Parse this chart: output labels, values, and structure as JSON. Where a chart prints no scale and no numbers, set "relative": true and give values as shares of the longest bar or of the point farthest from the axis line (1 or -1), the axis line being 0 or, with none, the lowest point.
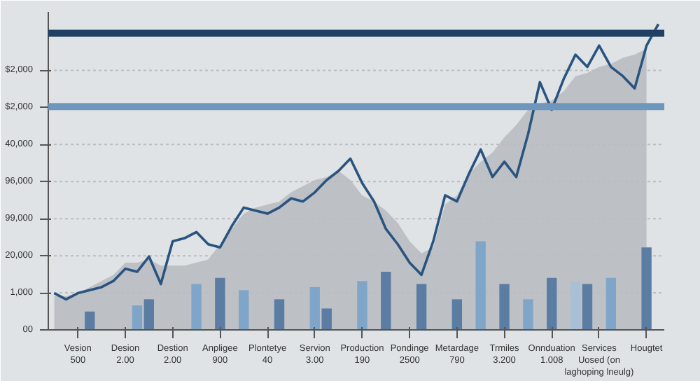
{
  "chart_data": {
    "type": "line",
    "relative": true,
    "categories": [
      null,
      null,
      "Vesion\n500",
      null,
      null,
      null,
      "Desion\n2.00",
      null,
      null,
      null,
      "Destion\n2.00",
      null,
      null,
      null,
      "Anpligee\n900",
      null,
      null,
      null,
      "Plontetye\n40",
      null,
      null,
      null,
      "Servion\n3.00",
      null,
      null,
      null,
      "Production\n190",
      null,
      null,
      null,
      "Pondinge\n2500",
      null,
      null,
      null,
      "Metardage\n790",
      null,
      null,
      null,
      "Trmiles\n3.200",
      null,
      null,
      null,
      "Onnduation\n1.008",
      null,
      null,
      null,
      "Services\nUosed (on\nlaghoping lneulg)",
      null,
      null,
      null,
      "Hougtet",
      null
    ],
    "annotations": [
      "00",
      "1,000",
      "20,000",
      "99,000",
      "96,000",
      "40,000",
      "$2,000",
      "$2,000"
    ],
    "series": [
      {
        "type": "area",
        "color": "#b9bdc1",
        "values": [
          0.11,
          0.11,
          0.12,
          0.14,
          0.16,
          0.18,
          0.22,
          0.22,
          0.23,
          0.21,
          0.21,
          0.21,
          0.22,
          0.23,
          0.28,
          0.33,
          0.38,
          0.4,
          0.41,
          0.42,
          0.45,
          0.47,
          0.49,
          0.5,
          0.52,
          0.49,
          0.44,
          0.42,
          0.39,
          0.35,
          0.29,
          0.25,
          0.27,
          0.41,
          0.44,
          0.51,
          0.55,
          0.58,
          0.63,
          0.67,
          0.72,
          0.74,
          0.75,
          0.78,
          0.83,
          0.84,
          0.86,
          0.87,
          0.89,
          0.9,
          0.92,
          null
        ]
      },
      {
        "type": "bar",
        "color": "#5b7ca3",
        "values": [
          null,
          null,
          null,
          0.06,
          null,
          null,
          null,
          null,
          0.1,
          null,
          null,
          null,
          null,
          null,
          0.17,
          null,
          null,
          null,
          null,
          0.1,
          null,
          null,
          null,
          0.07,
          null,
          null,
          null,
          null,
          0.19,
          null,
          null,
          0.15,
          null,
          null,
          0.1,
          null,
          null,
          null,
          0.15,
          null,
          null,
          null,
          0.17,
          null,
          null,
          0.15,
          null,
          null,
          null,
          null,
          0.27,
          null
        ]
      },
      {
        "type": "bar",
        "color": "#7fa6c9",
        "values": [
          null,
          null,
          null,
          null,
          null,
          null,
          null,
          0.08,
          null,
          null,
          null,
          null,
          0.15,
          null,
          null,
          null,
          0.13,
          null,
          null,
          null,
          null,
          null,
          0.14,
          null,
          null,
          null,
          0.16,
          null,
          null,
          null,
          null,
          null,
          null,
          null,
          null,
          null,
          0.29,
          null,
          null,
          null,
          0.1,
          null,
          null,
          null,
          null,
          null,
          null,
          0.17,
          null,
          null,
          null,
          null
        ]
      },
      {
        "type": "bar",
        "color": "#a8bfd5",
        "values": [
          null,
          null,
          null,
          null,
          null,
          null,
          null,
          null,
          null,
          null,
          null,
          null,
          null,
          null,
          null,
          null,
          null,
          null,
          null,
          null,
          null,
          null,
          null,
          null,
          null,
          null,
          null,
          null,
          null,
          null,
          null,
          null,
          null,
          null,
          null,
          null,
          null,
          null,
          null,
          null,
          null,
          null,
          null,
          null,
          0.16,
          null,
          null,
          null,
          null,
          null,
          null,
          null
        ]
      },
      {
        "color": "#2a5480",
        "values": [
          0.12,
          0.1,
          0.12,
          0.13,
          0.14,
          0.16,
          0.2,
          0.19,
          0.24,
          0.15,
          0.29,
          0.3,
          0.32,
          0.28,
          0.27,
          0.34,
          0.4,
          0.39,
          0.38,
          0.4,
          0.43,
          0.42,
          0.45,
          0.49,
          0.52,
          0.56,
          0.48,
          0.42,
          0.33,
          0.28,
          0.22,
          0.18,
          0.29,
          0.44,
          0.42,
          0.51,
          0.59,
          0.5,
          0.55,
          0.5,
          0.64,
          0.81,
          0.72,
          0.82,
          0.9,
          0.86,
          0.93,
          0.86,
          0.83,
          0.79,
          0.93,
          1
        ]
      }
    ],
    "ref_lines": [
      {
        "axis": "y",
        "value": 0.73,
        "color": "#6f96bd"
      },
      {
        "axis": "y",
        "value": 0.97,
        "color": "#1f3f63"
      }
    ]
  }
}
